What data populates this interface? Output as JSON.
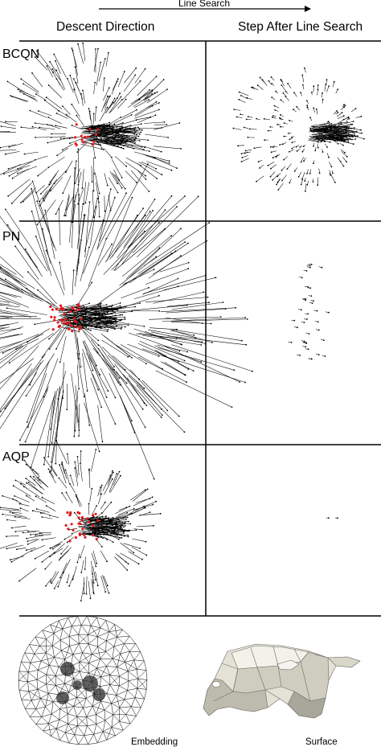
{
  "header": {
    "arrow_label": "Line Search",
    "col_left": "Descent Direction",
    "col_right": "Step After Line Search"
  },
  "rows": [
    {
      "label": "BCQN"
    },
    {
      "label": "PN"
    },
    {
      "label": "AQP"
    }
  ],
  "bottom": {
    "embedding_label": "Embedding",
    "surface_label": "Surface"
  },
  "colors": {
    "line": "#000000",
    "highlight": "#e31a1c",
    "surface": "#e4e2d6"
  }
}
